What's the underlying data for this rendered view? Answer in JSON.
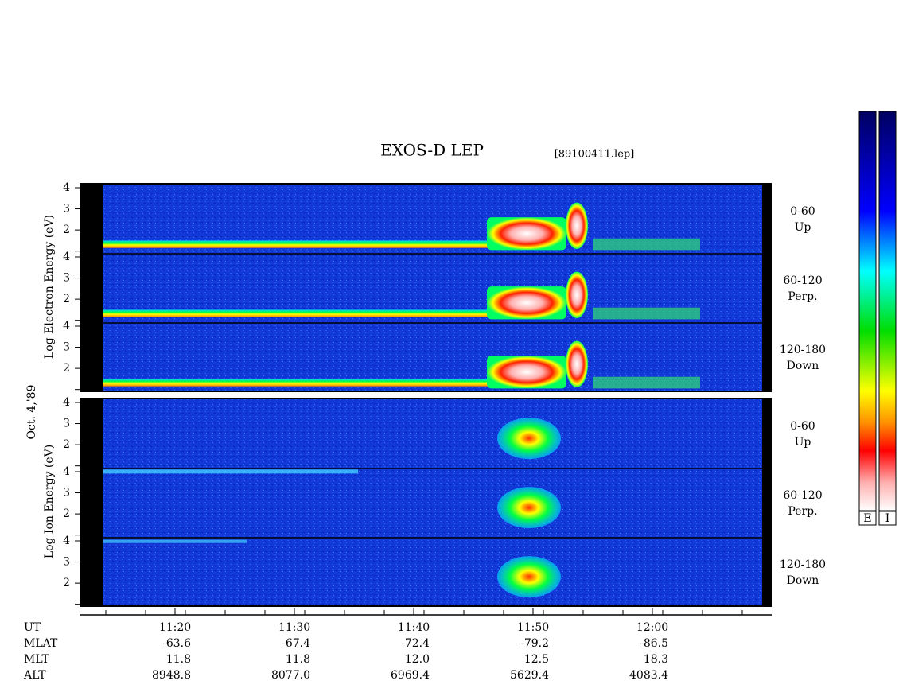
{
  "chart_data": {
    "type": "spectrogram",
    "title": "EXOS-D LEP",
    "file": "[89100411.lep]",
    "date": "Oct. 4,'89",
    "ylim": [
      0.95,
      4.15
    ],
    "yticks": [
      2,
      3,
      4
    ],
    "groups": [
      {
        "ylabel": "Log Electron Energy (eV)",
        "panels": [
          {
            "range": "0-60",
            "direction": "Up"
          },
          {
            "range": "60-120",
            "direction": "Perp."
          },
          {
            "range": "120-180",
            "direction": "Down"
          }
        ]
      },
      {
        "ylabel": "Log  Ion  Energy (eV)",
        "panels": [
          {
            "range": "0-60",
            "direction": "Up"
          },
          {
            "range": "60-120",
            "direction": "Perp."
          },
          {
            "range": "120-180",
            "direction": "Down"
          }
        ]
      }
    ],
    "ephemeris": {
      "labels": [
        "UT",
        "MLAT",
        "MLT",
        "ALT"
      ],
      "columns": [
        [
          "11:20",
          "-63.6",
          "11.8",
          "8948.8"
        ],
        [
          "11:30",
          "-67.4",
          "11.8",
          "8077.0"
        ],
        [
          "11:40",
          "-72.4",
          "12.0",
          "6969.4"
        ],
        [
          "11:50",
          "-79.2",
          "12.5",
          "5629.4"
        ],
        [
          "12:00",
          "-86.5",
          "18.3",
          "4083.4"
        ]
      ]
    },
    "colorbar_labels": [
      "E",
      "I"
    ]
  }
}
